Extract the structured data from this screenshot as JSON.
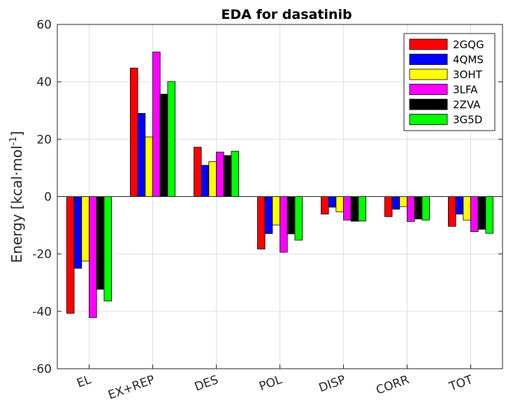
{
  "chart_data": {
    "type": "bar",
    "title": "EDA for dasatinib",
    "ylabel": "Energy [kcal·mol",
    "ylabel_sup": "-1",
    "ylabel_close": "]",
    "xlabel": "",
    "ylim": [
      -60,
      60
    ],
    "yticks": [
      "-60",
      "-40",
      "-20",
      "0",
      "20",
      "40",
      "60"
    ],
    "ytick_values": [
      -60,
      -40,
      -20,
      0,
      20,
      40,
      60
    ],
    "grid": true,
    "legend_position": "top-right",
    "categories": [
      "EL",
      "EX+REP",
      "DES",
      "POL",
      "DISP",
      "CORR",
      "TOT"
    ],
    "series": [
      {
        "name": "2GQG",
        "color": "#ff0000",
        "values": [
          -40.7,
          44.8,
          17.2,
          -18.3,
          -6.1,
          -7.0,
          -10.4
        ]
      },
      {
        "name": "4QMS",
        "color": "#0000ff",
        "values": [
          -25.0,
          29.0,
          10.9,
          -12.9,
          -3.7,
          -4.4,
          -6.1
        ]
      },
      {
        "name": "3OHT",
        "color": "#ffff00",
        "values": [
          -22.5,
          20.8,
          12.2,
          -9.9,
          -5.3,
          -3.5,
          -8.2
        ]
      },
      {
        "name": "3LFA",
        "color": "#ff00ff",
        "values": [
          -42.2,
          50.4,
          15.5,
          -19.4,
          -8.2,
          -8.7,
          -12.2
        ]
      },
      {
        "name": "2ZVA",
        "color": "#000000",
        "values": [
          -32.3,
          35.7,
          14.3,
          -13.0,
          -8.6,
          -7.8,
          -11.4
        ]
      },
      {
        "name": "3G5D",
        "color": "#00ff00",
        "values": [
          -36.4,
          40.1,
          15.8,
          -15.2,
          -8.5,
          -8.2,
          -12.8
        ]
      }
    ]
  }
}
